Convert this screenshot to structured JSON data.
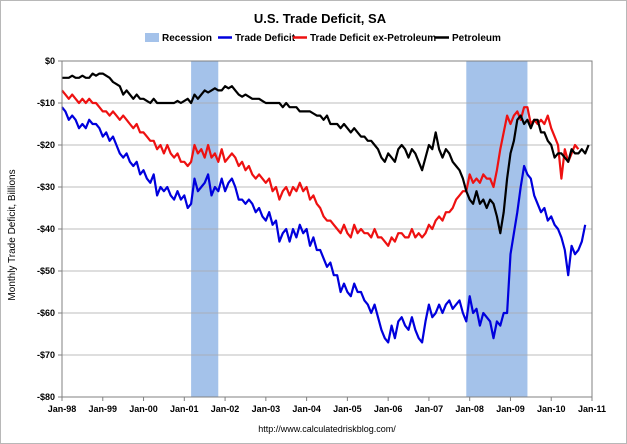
{
  "chart_data": {
    "type": "line",
    "title": "U.S. Trade Deficit, SA",
    "ylabel": "Monthly Trade Deficit, Billions",
    "xlabel": "",
    "source": "http://www.calculatedriskblog.com/",
    "ylim": [
      -80,
      0
    ],
    "x_range_months": [
      0,
      156
    ],
    "y_ticks": [
      {
        "value": 0,
        "label": "$0"
      },
      {
        "value": -10,
        "label": "-$10"
      },
      {
        "value": -20,
        "label": "-$20"
      },
      {
        "value": -30,
        "label": "-$30"
      },
      {
        "value": -40,
        "label": "-$40"
      },
      {
        "value": -50,
        "label": "-$50"
      },
      {
        "value": -60,
        "label": "-$60"
      },
      {
        "value": -70,
        "label": "-$70"
      },
      {
        "value": -80,
        "label": "-$80"
      }
    ],
    "x_ticks": [
      {
        "month": 0,
        "label": "Jan-98"
      },
      {
        "month": 12,
        "label": "Jan-99"
      },
      {
        "month": 24,
        "label": "Jan-00"
      },
      {
        "month": 36,
        "label": "Jan-01"
      },
      {
        "month": 48,
        "label": "Jan-02"
      },
      {
        "month": 60,
        "label": "Jan-03"
      },
      {
        "month": 72,
        "label": "Jan-04"
      },
      {
        "month": 84,
        "label": "Jan-05"
      },
      {
        "month": 96,
        "label": "Jan-06"
      },
      {
        "month": 108,
        "label": "Jan-07"
      },
      {
        "month": 120,
        "label": "Jan-08"
      },
      {
        "month": 132,
        "label": "Jan-09"
      },
      {
        "month": 144,
        "label": "Jan-10"
      },
      {
        "month": 156,
        "label": "Jan-11"
      }
    ],
    "recessions": [
      {
        "label": "Recession",
        "start_month": 38,
        "end_month": 46
      },
      {
        "label": "Recession",
        "start_month": 119,
        "end_month": 137
      }
    ],
    "legend": [
      {
        "label": "Recession",
        "color": "#a4c2ea",
        "kind": "box"
      },
      {
        "label": "Trade Deficit",
        "color": "#0000dd",
        "kind": "line"
      },
      {
        "label": "Trade Deficit ex-Petroleum",
        "color": "#ee1111",
        "kind": "line"
      },
      {
        "label": "Petroleum",
        "color": "#000000",
        "kind": "line"
      }
    ],
    "series": [
      {
        "name": "Trade Deficit",
        "color": "#0000dd",
        "start_month": 0,
        "values": [
          -11,
          -12,
          -14,
          -13,
          -14,
          -16,
          -15,
          -16,
          -14,
          -15,
          -15,
          -16,
          -18,
          -17,
          -19,
          -18,
          -20,
          -22,
          -23,
          -22,
          -24,
          -25,
          -24,
          -27,
          -26,
          -28,
          -29,
          -27,
          -32,
          -30,
          -31,
          -30,
          -32,
          -33,
          -31,
          -33,
          -32,
          -35,
          -34,
          -28,
          -31,
          -30,
          -29,
          -27,
          -32,
          -30,
          -31,
          -28,
          -31,
          -29,
          -28,
          -30,
          -33,
          -33,
          -34,
          -33,
          -34,
          -36,
          -35,
          -37,
          -38,
          -36,
          -39,
          -38,
          -43,
          -41,
          -40,
          -43,
          -40,
          -42,
          -39,
          -41,
          -40,
          -44,
          -42,
          -45,
          -45,
          -47,
          -49,
          -48,
          -51,
          -51,
          -55,
          -53,
          -55,
          -56,
          -53,
          -55,
          -55,
          -57,
          -58,
          -60,
          -58,
          -61,
          -64,
          -66,
          -67,
          -63,
          -66,
          -62,
          -61,
          -63,
          -64,
          -61,
          -64,
          -66,
          -67,
          -62,
          -58,
          -61,
          -60,
          -58,
          -60,
          -58,
          -57,
          -59,
          -58,
          -57,
          -60,
          -62,
          -56,
          -60,
          -59,
          -63,
          -60,
          -61,
          -62,
          -66,
          -62,
          -63,
          -60,
          -60,
          -46,
          -41,
          -36,
          -30,
          -25,
          -27,
          -28,
          -32,
          -34,
          -36,
          -35,
          -38,
          -37,
          -39,
          -40,
          -42,
          -45,
          -51,
          -44,
          -46,
          -45,
          -43,
          -39
        ]
      },
      {
        "name": "Trade Deficit ex-Petroleum",
        "color": "#ee1111",
        "start_month": 0,
        "values": [
          -7,
          -8,
          -9,
          -8,
          -9,
          -10,
          -9,
          -10,
          -9,
          -10,
          -10,
          -11,
          -12,
          -12,
          -13,
          -12,
          -13,
          -14,
          -13,
          -14,
          -15,
          -16,
          -15,
          -17,
          -17,
          -18,
          -19,
          -19,
          -21,
          -20,
          -22,
          -20,
          -22,
          -23,
          -22,
          -24,
          -24,
          -25,
          -24,
          -20,
          -22,
          -21,
          -23,
          -20,
          -23,
          -22,
          -24,
          -21,
          -24,
          -23,
          -22,
          -23,
          -25,
          -24,
          -26,
          -25,
          -27,
          -28,
          -27,
          -28,
          -29,
          -28,
          -31,
          -30,
          -33,
          -31,
          -30,
          -32,
          -30,
          -31,
          -29,
          -31,
          -30,
          -33,
          -32,
          -34,
          -35,
          -37,
          -38,
          -38,
          -39,
          -40,
          -41,
          -39,
          -41,
          -42,
          -39,
          -41,
          -40,
          -41,
          -41,
          -42,
          -40,
          -42,
          -42,
          -43,
          -44,
          -42,
          -43,
          -41,
          -41,
          -42,
          -42,
          -40,
          -42,
          -41,
          -42,
          -41,
          -39,
          -40,
          -38,
          -37,
          -38,
          -36,
          -36,
          -35,
          -33,
          -32,
          -31,
          -31,
          -27,
          -29,
          -28,
          -29,
          -27,
          -28,
          -28,
          -30,
          -26,
          -21,
          -17,
          -13,
          -15,
          -13,
          -12,
          -14,
          -11,
          -11,
          -15,
          -14,
          -15,
          -14,
          -15,
          -13,
          -16,
          -18,
          -20,
          -28,
          -21,
          -24,
          -22,
          -20,
          -21
        ]
      },
      {
        "name": "Petroleum",
        "color": "#000000",
        "start_month": 0,
        "values": [
          -4,
          -4,
          -4,
          -3.5,
          -4,
          -4,
          -3.5,
          -4,
          -4,
          -3,
          -3.5,
          -3,
          -3,
          -3.5,
          -4,
          -5,
          -5.5,
          -6,
          -8,
          -7,
          -8,
          -9,
          -8,
          -9,
          -9,
          -9.5,
          -10,
          -9,
          -10,
          -10,
          -10,
          -10,
          -10,
          -10,
          -9.5,
          -10,
          -9.5,
          -9,
          -10,
          -8,
          -9,
          -8,
          -7,
          -7.5,
          -7,
          -6.5,
          -7,
          -7,
          -6,
          -6.5,
          -6,
          -7,
          -8,
          -8.5,
          -8,
          -8.5,
          -9,
          -9,
          -9,
          -9.5,
          -10,
          -10,
          -10,
          -10,
          -10,
          -11,
          -10,
          -11,
          -11,
          -11,
          -12,
          -12,
          -12,
          -12,
          -12.5,
          -13,
          -13,
          -14,
          -13,
          -15,
          -15,
          -15,
          -16,
          -15,
          -16,
          -17,
          -16,
          -17,
          -18,
          -18,
          -19,
          -19,
          -20,
          -21,
          -23,
          -24,
          -22,
          -23,
          -24,
          -21,
          -20,
          -21,
          -23,
          -21,
          -22,
          -24,
          -26,
          -23,
          -20,
          -21,
          -17,
          -21,
          -23,
          -21,
          -22,
          -24,
          -25,
          -26,
          -28,
          -31,
          -33,
          -34,
          -31,
          -34,
          -33,
          -35,
          -33,
          -34,
          -37,
          -41,
          -36,
          -28,
          -22,
          -19,
          -14,
          -13,
          -15,
          -14,
          -16,
          -14,
          -14,
          -17,
          -17,
          -19,
          -20,
          -23,
          -22,
          -22,
          -23,
          -24,
          -21,
          -22,
          -22,
          -21,
          -22,
          -20
        ]
      }
    ]
  }
}
